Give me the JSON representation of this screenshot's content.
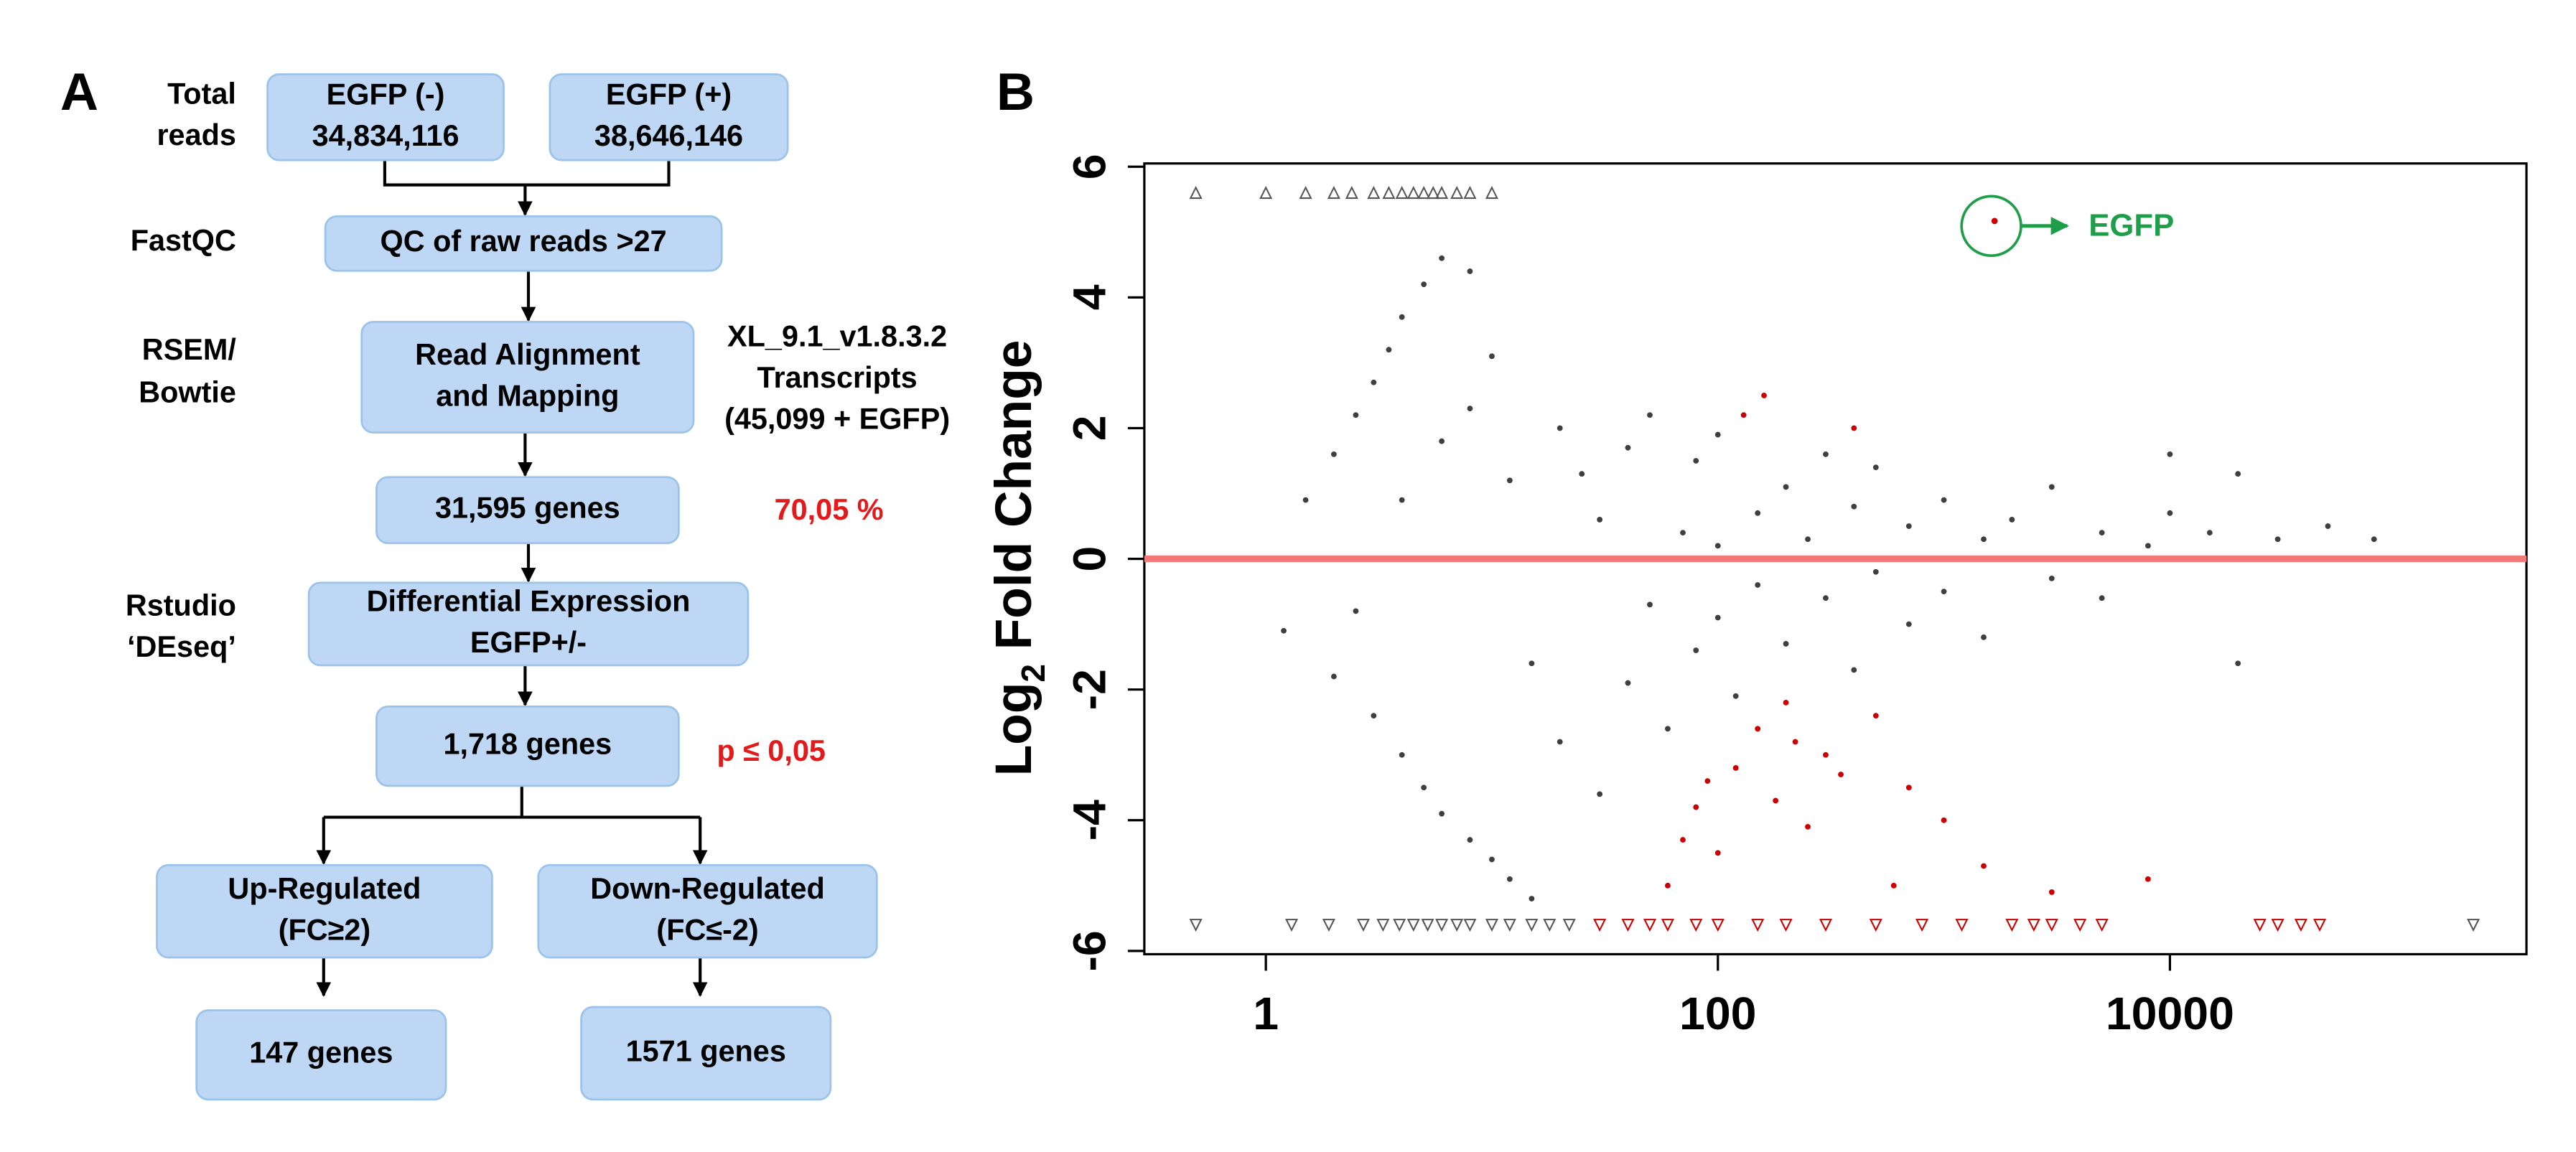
{
  "panel_a": {
    "label": "A",
    "side_labels": [
      [
        "Total",
        "reads"
      ],
      [
        "FastQC"
      ],
      [
        "RSEM/",
        "Bowtie"
      ],
      [
        "Rstudio",
        "‘DEseq’"
      ]
    ],
    "boxes": [
      [
        "EGFP (-)",
        "34,834,116"
      ],
      [
        "EGFP (+)",
        "38,646,146"
      ],
      [
        "QC of raw reads >27"
      ],
      [
        "Read Alignment",
        "and Mapping"
      ],
      [
        "31,595 genes"
      ],
      [
        "Differential Expression",
        "EGFP+/-"
      ],
      [
        "1,718 genes"
      ],
      [
        "Up-Regulated",
        "(FC≥2)"
      ],
      [
        "Down-Regulated",
        "(FC≤-2)"
      ],
      [
        "147 genes"
      ],
      [
        "1571 genes"
      ]
    ],
    "reference": [
      "XL_9.1_v1.8.3.2",
      "Transcripts",
      "(45,099 + EGFP)"
    ],
    "mapping_rate": "70,05 %",
    "threshold": "p ≤ 0,05",
    "highlight_color": "#e31a1c"
  },
  "chart_data": {
    "type": "scatter",
    "label": "B",
    "ylabel": [
      "Log",
      "2",
      " Fold Change"
    ],
    "xscale": "log",
    "xlim": [
      0.29,
      378000
    ],
    "xticks": [
      1,
      100,
      10000
    ],
    "ylim": [
      -6.05,
      6.05
    ],
    "yticks": [
      -6,
      -4,
      -2,
      0,
      2,
      4,
      6
    ],
    "reference_line": {
      "y": 0,
      "color": "#f47a7a"
    },
    "annotation": {
      "text": "EGFP",
      "x": 1676,
      "y": 5.17,
      "color": "#1f9e49"
    },
    "series": [
      {
        "color": "#3f3f3f",
        "marker": "dot",
        "x": [
          1.5,
          2,
          2.5,
          3,
          3.5,
          4,
          5,
          6,
          8,
          1.2,
          2,
          3,
          4,
          5,
          6,
          8,
          10,
          12,
          15,
          2.5,
          4,
          6,
          8,
          10,
          12,
          15,
          20,
          20,
          25,
          30,
          30,
          40,
          40,
          50,
          50,
          60,
          70,
          80,
          80,
          100,
          100,
          100,
          120,
          150,
          150,
          200,
          200,
          250,
          300,
          300,
          400,
          400,
          500,
          500,
          700,
          700,
          1000,
          1000,
          1500,
          1500,
          2000,
          3000,
          3000,
          5000,
          5000,
          8000,
          10000,
          15000,
          20000,
          30000,
          50000,
          80000,
          20000,
          10000
        ],
        "values": [
          0.9,
          1.6,
          2.2,
          2.7,
          3.2,
          3.7,
          4.2,
          4.6,
          4.4,
          -1.1,
          -1.8,
          -2.4,
          -3.0,
          -3.5,
          -3.9,
          -4.3,
          -4.6,
          -4.9,
          -5.2,
          -0.8,
          0.9,
          1.8,
          2.3,
          3.1,
          1.2,
          -1.6,
          2.0,
          -2.8,
          1.3,
          -3.6,
          0.6,
          -1.9,
          1.7,
          -0.7,
          2.2,
          -2.6,
          0.4,
          1.5,
          -1.4,
          0.2,
          -0.9,
          1.9,
          -2.1,
          0.7,
          -0.4,
          1.1,
          -1.3,
          0.3,
          -0.6,
          1.6,
          0.8,
          -1.7,
          -0.2,
          1.4,
          0.5,
          -1.0,
          0.9,
          -0.5,
          0.3,
          -1.2,
          0.6,
          -0.3,
          1.1,
          0.4,
          -0.6,
          0.2,
          0.7,
          0.4,
          1.3,
          0.3,
          0.5,
          0.3,
          -1.6,
          1.6
        ]
      },
      {
        "color": "#cc0000",
        "marker": "dot",
        "x": [
          60,
          70,
          80,
          100,
          120,
          150,
          180,
          200,
          250,
          300,
          400,
          500,
          700,
          1000,
          1500,
          3000,
          8000,
          90,
          130,
          160,
          220,
          350,
          600
        ],
        "values": [
          -5.0,
          -4.3,
          -3.8,
          -4.5,
          -3.2,
          -2.6,
          -3.7,
          -2.2,
          -4.1,
          -3.0,
          2.0,
          -2.4,
          -3.5,
          -4.0,
          -4.7,
          -5.1,
          -4.9,
          -3.4,
          2.2,
          2.5,
          -2.8,
          -3.3,
          -5.0
        ]
      },
      {
        "color": "#555555",
        "marker": "triangle-up",
        "x": [
          0.49,
          1,
          1.5,
          2,
          2.4,
          3,
          3.5,
          4,
          4.5,
          5,
          5.5,
          6,
          7,
          8,
          10
        ],
        "values": [
          5.6,
          5.6,
          5.6,
          5.6,
          5.6,
          5.6,
          5.6,
          5.6,
          5.6,
          5.6,
          5.6,
          5.6,
          5.6,
          5.6,
          5.6
        ]
      },
      {
        "color": "#555555",
        "marker": "triangle-down",
        "x": [
          0.49,
          1.3,
          1.9,
          2.7,
          3.3,
          3.9,
          4.5,
          5.2,
          6,
          7,
          8,
          10,
          12,
          15,
          18,
          22,
          220000
        ],
        "values": [
          -5.6,
          -5.6,
          -5.6,
          -5.6,
          -5.6,
          -5.6,
          -5.6,
          -5.6,
          -5.6,
          -5.6,
          -5.6,
          -5.6,
          -5.6,
          -5.6,
          -5.6,
          -5.6,
          -5.6
        ]
      },
      {
        "color": "#cc0000",
        "marker": "triangle-down",
        "x": [
          30,
          40,
          50,
          60,
          80,
          100,
          150,
          200,
          300,
          500,
          800,
          1200,
          2000,
          2500,
          3000,
          4000,
          5000,
          25000,
          30000,
          38000,
          46000
        ],
        "values": [
          -5.6,
          -5.6,
          -5.6,
          -5.6,
          -5.6,
          -5.6,
          -5.6,
          -5.6,
          -5.6,
          -5.6,
          -5.6,
          -5.6,
          -5.6,
          -5.6,
          -5.6,
          -5.6,
          -5.6,
          -5.6,
          -5.6,
          -5.6,
          -5.6
        ]
      }
    ]
  }
}
